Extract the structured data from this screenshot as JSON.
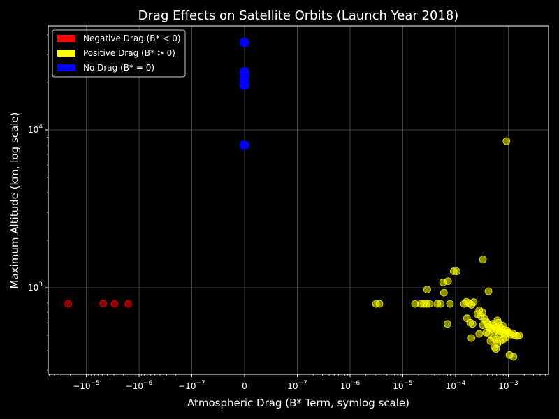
{
  "chart_data": {
    "type": "scatter",
    "title": "Drag Effects on Satellite Orbits (Launch Year 2018)",
    "xlabel": "Atmospheric Drag (B* Term, symlog scale)",
    "ylabel": "Maximum Altitude (km, log scale)",
    "x_scale": "symlog",
    "y_scale": "log",
    "grid": true,
    "legend_position": "top-left",
    "x_ticks": [
      {
        "value": -1e-05,
        "base": "−10",
        "exp": "−5"
      },
      {
        "value": -1e-06,
        "base": "−10",
        "exp": "−6"
      },
      {
        "value": -1e-07,
        "base": "−10",
        "exp": "−7"
      },
      {
        "value": 0,
        "base": "0",
        "exp": ""
      },
      {
        "value": 1e-07,
        "base": "10",
        "exp": "−7"
      },
      {
        "value": 1e-06,
        "base": "10",
        "exp": "−6"
      },
      {
        "value": 1e-05,
        "base": "10",
        "exp": "−5"
      },
      {
        "value": 0.0001,
        "base": "10",
        "exp": "−4"
      },
      {
        "value": 0.001,
        "base": "10",
        "exp": "−3"
      }
    ],
    "y_ticks": [
      {
        "value": 1000,
        "base": "10",
        "exp": "3"
      },
      {
        "value": 10000,
        "base": "10",
        "exp": "4"
      }
    ],
    "series": [
      {
        "name": "Negative Drag (B* < 0)",
        "color": "#ff0000",
        "points": [
          [
            -2.2e-05,
            790
          ],
          [
            -4.8e-06,
            795
          ],
          [
            -2.9e-06,
            790
          ],
          [
            -1.6e-06,
            790
          ]
        ]
      },
      {
        "name": "Positive Drag (B* > 0)",
        "color": "#ffff00",
        "points": [
          [
            3.1e-06,
            790
          ],
          [
            3.6e-06,
            790
          ],
          [
            1.7e-05,
            790
          ],
          [
            2.2e-05,
            790
          ],
          [
            2.5e-05,
            790
          ],
          [
            2.8e-05,
            790
          ],
          [
            3.2e-05,
            790
          ],
          [
            2.9e-05,
            975
          ],
          [
            4.5e-05,
            790
          ],
          [
            5.2e-05,
            790
          ],
          [
            7.8e-05,
            790
          ],
          [
            5.8e-05,
            1080
          ],
          [
            7.2e-05,
            1100
          ],
          [
            9.2e-05,
            1270
          ],
          [
            0.000105,
            1270
          ],
          [
            6e-05,
            930
          ],
          [
            7e-05,
            590
          ],
          [
            0.000145,
            790
          ],
          [
            0.00016,
            815
          ],
          [
            0.00018,
            800
          ],
          [
            0.0002,
            780
          ],
          [
            0.00022,
            810
          ],
          [
            0.000165,
            640
          ],
          [
            0.00019,
            600
          ],
          [
            0.00021,
            590
          ],
          [
            0.0002,
            480
          ],
          [
            0.00026,
            680
          ],
          [
            0.00028,
            720
          ],
          [
            0.0003,
            660
          ],
          [
            0.00032,
            700
          ],
          [
            0.00033,
            1510
          ],
          [
            0.00035,
            640
          ],
          [
            0.00038,
            610
          ],
          [
            0.0004,
            590
          ],
          [
            0.00042,
            570
          ],
          [
            0.00045,
            560
          ],
          [
            0.00048,
            545
          ],
          [
            0.0005,
            590
          ],
          [
            0.00052,
            575
          ],
          [
            0.00055,
            530
          ],
          [
            0.00058,
            560
          ],
          [
            0.0006,
            540
          ],
          [
            0.00062,
            620
          ],
          [
            0.00065,
            600
          ],
          [
            0.00068,
            515
          ],
          [
            0.0007,
            530
          ],
          [
            0.00072,
            560
          ],
          [
            0.00075,
            545
          ],
          [
            0.00078,
            575
          ],
          [
            0.0008,
            520
          ],
          [
            0.00085,
            540
          ],
          [
            0.0009,
            510
          ],
          [
            0.00095,
            535
          ],
          [
            0.001,
            520
          ],
          [
            0.0011,
            505
          ],
          [
            0.0012,
            515
          ],
          [
            0.0013,
            500
          ],
          [
            0.00145,
            495
          ],
          [
            0.0016,
            498
          ],
          [
            0.00028,
            510
          ],
          [
            0.00033,
            580
          ],
          [
            0.00038,
            520
          ],
          [
            0.00042,
            510
          ],
          [
            0.00046,
            460
          ],
          [
            0.00052,
            480
          ],
          [
            0.00058,
            470
          ],
          [
            0.00055,
            420
          ],
          [
            0.00058,
            410
          ],
          [
            0.00062,
            440
          ],
          [
            0.0007,
            460
          ],
          [
            0.0008,
            470
          ],
          [
            0.00088,
            480
          ],
          [
            0.00042,
            950
          ],
          [
            0.00092,
            8500
          ],
          [
            0.00105,
            375
          ],
          [
            0.00125,
            365
          ]
        ]
      },
      {
        "name": "No Drag (B* = 0)",
        "color": "#0000ff",
        "points": [
          [
            0,
            35800
          ],
          [
            0,
            23300
          ],
          [
            0,
            22000
          ],
          [
            0,
            20500
          ],
          [
            0,
            19200
          ],
          [
            0,
            8000
          ]
        ]
      }
    ]
  }
}
